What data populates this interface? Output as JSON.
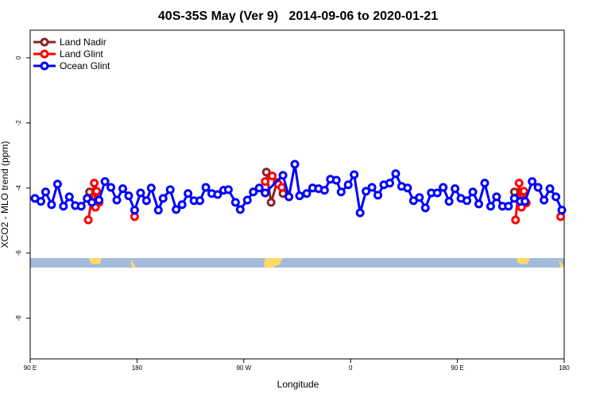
{
  "chart_data": {
    "type": "line",
    "title": "40S-35S May (Ver 9)   2014-09-06 to 2020-01-21",
    "xlabel": "Longitude",
    "ylabel": "XCO2 - MLO trend (ppm)",
    "xlim": [
      90,
      540
    ],
    "ylim": [
      -9.25,
      0.85
    ],
    "xticks": [
      {
        "value": 90,
        "label": "90 E"
      },
      180,
      {
        "value": 270,
        "label": "90 W"
      },
      {
        "value": 360,
        "label": "0"
      },
      {
        "value": 450,
        "label": "90 E"
      },
      {
        "value": 540,
        "label": "180"
      }
    ],
    "yticks": [
      -8,
      -6,
      -4,
      -2,
      0
    ],
    "legend": "top-left",
    "series": [
      {
        "name": "Land Nadir",
        "color": "#8b2323",
        "x": [
          140,
          215,
          289,
          293,
          298,
          303,
          400,
          498
        ],
        "values": [
          -4.12,
          null,
          -3.51,
          -4.44,
          -3.83,
          -4.17,
          null,
          -4.12
        ]
      },
      {
        "name": "Land Glint",
        "color": "#ff0000",
        "x": [
          139,
          144,
          145,
          146,
          148,
          160,
          178,
          230,
          288,
          294,
          299,
          302,
          400,
          499,
          502,
          504,
          506,
          508,
          520,
          537
        ],
        "values": [
          -4.98,
          -3.85,
          -4.59,
          -4.1,
          -4.44,
          null,
          -4.88,
          null,
          -3.8,
          -3.63,
          -3.88,
          -3.98,
          null,
          -4.98,
          -3.85,
          -4.59,
          -4.1,
          -4.46,
          null,
          -4.88
        ]
      },
      {
        "name": "Ocean Glint",
        "color": "#0000ff",
        "x": [
          94,
          99,
          103,
          108,
          113,
          118,
          123,
          128,
          133,
          138,
          142,
          148,
          153,
          158,
          163,
          168,
          173,
          178,
          183,
          188,
          192,
          198,
          202,
          208,
          213,
          218,
          223,
          228,
          233,
          238,
          243,
          248,
          253,
          257,
          263,
          267,
          273,
          278,
          283,
          288,
          303,
          308,
          313,
          317,
          323,
          328,
          333,
          338,
          343,
          348,
          352,
          358,
          363,
          368,
          373,
          378,
          383,
          388,
          393,
          398,
          403,
          408,
          413,
          418,
          423,
          428,
          433,
          438,
          443,
          448,
          453,
          458,
          463,
          468,
          473,
          478,
          483,
          488,
          493,
          498,
          503,
          507,
          513,
          518,
          523,
          528,
          533,
          538
        ],
        "values": [
          -4.32,
          -4.41,
          -4.12,
          -4.51,
          -3.88,
          -4.56,
          -4.27,
          -4.54,
          -4.56,
          -4.32,
          -4.44,
          -4.37,
          -3.8,
          -3.98,
          -4.37,
          -4.02,
          -4.24,
          -4.68,
          -4.15,
          -4.39,
          -4.0,
          -4.68,
          -4.32,
          -4.05,
          -4.66,
          -4.51,
          -4.17,
          -4.39,
          -4.39,
          -3.98,
          -4.17,
          -4.2,
          -4.07,
          -4.05,
          -4.44,
          -4.66,
          -4.37,
          -4.12,
          -4.0,
          -4.15,
          -3.61,
          -4.27,
          -3.27,
          -4.24,
          -4.17,
          -4.0,
          -4.02,
          -4.07,
          -3.73,
          -3.76,
          -4.12,
          -3.9,
          -3.59,
          -4.76,
          -4.1,
          -3.98,
          -4.22,
          -3.9,
          -3.85,
          -3.56,
          -3.95,
          -4.0,
          -4.39,
          -4.29,
          -4.61,
          -4.15,
          -4.15,
          -3.98,
          -4.41,
          -4.02,
          -4.32,
          -4.39,
          -4.12,
          -4.49,
          -3.85,
          -4.56,
          -4.27,
          -4.56,
          -4.56,
          -4.32,
          -4.41,
          -4.41,
          -3.8,
          -3.98,
          -4.37,
          -4.02,
          -4.27,
          -4.68
        ]
      }
    ]
  }
}
